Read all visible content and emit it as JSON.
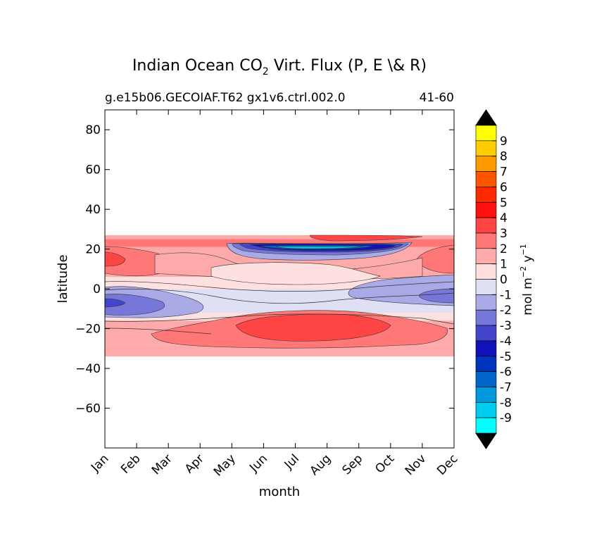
{
  "chart_data": {
    "type": "heatmap",
    "title_main": "Indian Ocean CO",
    "title_sub": "2",
    "title_rest": " Virt. Flux (P, E \\& R)",
    "case_label": "g.e15b06.GECOIAF.T62 gx1v6.ctrl.002.0",
    "years_label": "41-60",
    "xlabel": "month",
    "ylabel": "latitude",
    "x_categories": [
      "Jan",
      "Feb",
      "Mar",
      "Apr",
      "May",
      "Jun",
      "Jul",
      "Aug",
      "Sep",
      "Oct",
      "Nov",
      "Dec"
    ],
    "y_ticks": [
      80,
      60,
      40,
      20,
      0,
      -20,
      -40,
      -60
    ],
    "y_tick_labels": [
      "80",
      "60",
      "40",
      "20",
      "0",
      "−20",
      "−40",
      "−60"
    ],
    "ylim": [
      -80,
      90
    ],
    "lat_range_with_data": [
      -34,
      27
    ],
    "colorbar": {
      "label_main": "mol m",
      "label_exp1": "−2",
      "label_mid": " y",
      "label_exp2": "−1",
      "levels": [
        9,
        8,
        7,
        6,
        5,
        4,
        3,
        2,
        1,
        0,
        -1,
        -2,
        -3,
        -4,
        -5,
        -6,
        -7,
        -8,
        -9
      ],
      "level_labels": [
        "9",
        "8",
        "7",
        "6",
        "5",
        "4",
        "3",
        "2",
        "1",
        "0",
        "-1",
        "-2",
        "-3",
        "-4",
        "-5",
        "-6",
        "-7",
        "-8",
        "-9"
      ],
      "colors_top_to_bottom": [
        "#ffff00",
        "#ffcc00",
        "#ff9900",
        "#ff5500",
        "#ff2a00",
        "#ff1111",
        "#ff4444",
        "#ff7777",
        "#ffaaaa",
        "#ffe0e0",
        "#e0e0f5",
        "#aaaae6",
        "#7777d9",
        "#4444cc",
        "#1111bb",
        "#0033bb",
        "#0066cc",
        "#0099dd",
        "#00ccee",
        "#00ffff"
      ],
      "over_color": "#000000",
      "under_color": "#000000"
    },
    "bands": [
      {
        "lat_top": 27,
        "lat_bottom": 25,
        "color": "#ffaaaa",
        "level": "1 to 2"
      },
      {
        "lat_top": 25,
        "lat_bottom": 21,
        "color": "#ff7777",
        "level": "2 to 3"
      },
      {
        "lat_top": 21,
        "lat_bottom": 6,
        "color": "#ffaaaa",
        "level": "1 to 2"
      },
      {
        "lat_top": 6,
        "lat_bottom": 0,
        "color": "#ffe0e0",
        "level": "0 to 1"
      },
      {
        "lat_top": 0,
        "lat_bottom": -12,
        "color": "#e0e0f5",
        "level": "-1 to 0"
      },
      {
        "lat_top": -12,
        "lat_bottom": -16,
        "color": "#ffe0e0",
        "level": "0 to 1"
      },
      {
        "lat_top": -16,
        "lat_bottom": -28,
        "color": "#ffaaaa",
        "level": "1 to 2"
      },
      {
        "lat_top": -28,
        "lat_bottom": -34,
        "color": "#ffaaaa",
        "level": "1 to 2"
      }
    ]
  }
}
